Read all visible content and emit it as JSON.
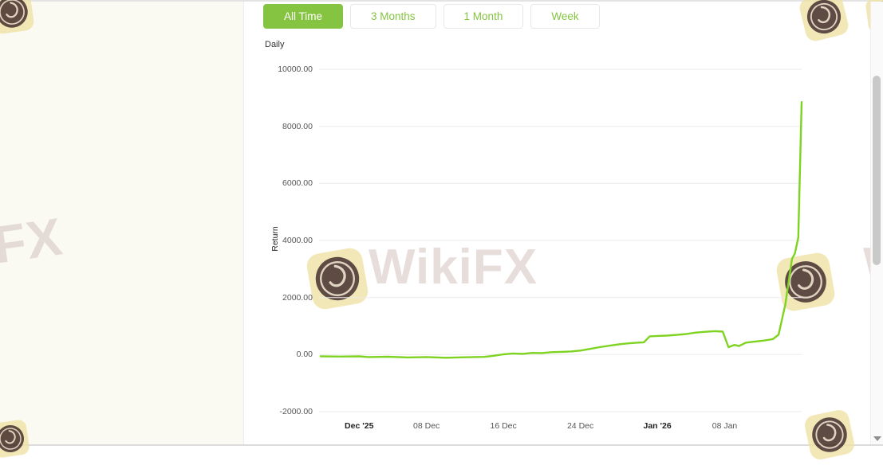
{
  "filters": {
    "items": [
      {
        "label": "All Time",
        "active": true
      },
      {
        "label": "3 Months",
        "active": false
      },
      {
        "label": "1 Month",
        "active": false
      },
      {
        "label": "Week",
        "active": false
      }
    ]
  },
  "chart": {
    "frequency_label": "Daily",
    "ylabel": "Return"
  },
  "chart_data": {
    "type": "line",
    "title": "",
    "xlabel": "",
    "ylabel": "Return",
    "ylim": [
      -2000,
      10000
    ],
    "xlim_days": [
      0,
      50
    ],
    "grid": "horizontal",
    "legend": "none",
    "y_ticks": [
      {
        "value": 10000,
        "label": "10000.00"
      },
      {
        "value": 8000,
        "label": "8000.00"
      },
      {
        "value": 6000,
        "label": "6000.00"
      },
      {
        "value": 4000,
        "label": "4000.00"
      },
      {
        "value": 2000,
        "label": "2000.00"
      },
      {
        "value": 0,
        "label": "0.00"
      },
      {
        "value": -2000,
        "label": "-2000.00"
      }
    ],
    "x_ticks": [
      {
        "day": 4,
        "label": "Dec '25",
        "bold": true
      },
      {
        "day": 11,
        "label": "08 Dec",
        "bold": false
      },
      {
        "day": 19,
        "label": "16 Dec",
        "bold": false
      },
      {
        "day": 27,
        "label": "24 Dec",
        "bold": false
      },
      {
        "day": 35,
        "label": "Jan '26",
        "bold": true
      },
      {
        "day": 42,
        "label": "08 Jan",
        "bold": false
      }
    ],
    "series": [
      {
        "name": "Daily Return",
        "points": [
          [
            0,
            -60
          ],
          [
            2,
            -70
          ],
          [
            4,
            -60
          ],
          [
            5,
            -85
          ],
          [
            7,
            -75
          ],
          [
            9,
            -100
          ],
          [
            11,
            -85
          ],
          [
            13,
            -110
          ],
          [
            15,
            -95
          ],
          [
            17,
            -80
          ],
          [
            18,
            -40
          ],
          [
            19,
            10
          ],
          [
            20,
            40
          ],
          [
            21,
            25
          ],
          [
            22,
            60
          ],
          [
            23,
            55
          ],
          [
            24,
            85
          ],
          [
            25,
            95
          ],
          [
            26,
            110
          ],
          [
            27,
            140
          ],
          [
            28,
            200
          ],
          [
            29,
            260
          ],
          [
            30,
            310
          ],
          [
            31,
            360
          ],
          [
            32,
            395
          ],
          [
            33,
            420
          ],
          [
            33.6,
            430
          ],
          [
            34.2,
            640
          ],
          [
            35,
            655
          ],
          [
            36,
            665
          ],
          [
            37,
            690
          ],
          [
            38,
            720
          ],
          [
            39,
            770
          ],
          [
            40,
            800
          ],
          [
            41,
            820
          ],
          [
            41.8,
            805
          ],
          [
            42.4,
            260
          ],
          [
            43,
            340
          ],
          [
            43.5,
            300
          ],
          [
            44.2,
            420
          ],
          [
            45,
            450
          ],
          [
            46,
            490
          ],
          [
            47,
            540
          ],
          [
            47.6,
            700
          ],
          [
            48.3,
            1750
          ],
          [
            49,
            3350
          ],
          [
            49.3,
            3550
          ],
          [
            49.65,
            4100
          ],
          [
            50,
            8850
          ]
        ]
      }
    ]
  },
  "watermark": {
    "text": "WikiFX",
    "partial_left_text": "FX",
    "partial_right_text": "W"
  },
  "colors": {
    "accent_green": "#85c441",
    "line_green": "#7ed321",
    "watermark_text": "#d8c8c4",
    "watermark_badge": "#efe3a6"
  }
}
